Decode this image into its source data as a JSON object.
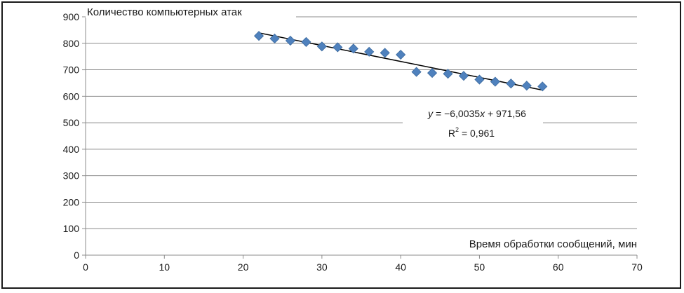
{
  "chart_data": {
    "type": "scatter",
    "ylabel": "Количество компьютерных  атак",
    "xlabel": "Время обработки сообщений, мин",
    "xlim": [
      0,
      70
    ],
    "ylim": [
      0,
      900
    ],
    "x_ticks": [
      0,
      10,
      20,
      30,
      40,
      50,
      60,
      70
    ],
    "y_ticks": [
      0,
      100,
      200,
      300,
      400,
      500,
      600,
      700,
      800,
      900
    ],
    "grid": "horizontal",
    "marker_color": "#4f81bd",
    "trendline_color": "#000000",
    "series": [
      {
        "x": [
          22,
          24,
          26,
          28,
          30,
          32,
          34,
          36,
          38,
          40,
          42,
          44,
          46,
          48,
          50,
          52,
          54,
          56,
          58
        ],
        "y": [
          828,
          818,
          810,
          805,
          788,
          785,
          780,
          768,
          764,
          757,
          692,
          688,
          685,
          677,
          663,
          655,
          648,
          640,
          637
        ]
      }
    ],
    "trendline": {
      "slope": -6.0035,
      "intercept": 971.56,
      "x_range": [
        22,
        58
      ],
      "equation_y": "y",
      "equation_rest": " = −6,0035",
      "equation_x": "x",
      "equation_tail": " + 971,56",
      "r2_prefix": "R",
      "r2_sup": "2",
      "r2_value": " = 0,961"
    }
  }
}
